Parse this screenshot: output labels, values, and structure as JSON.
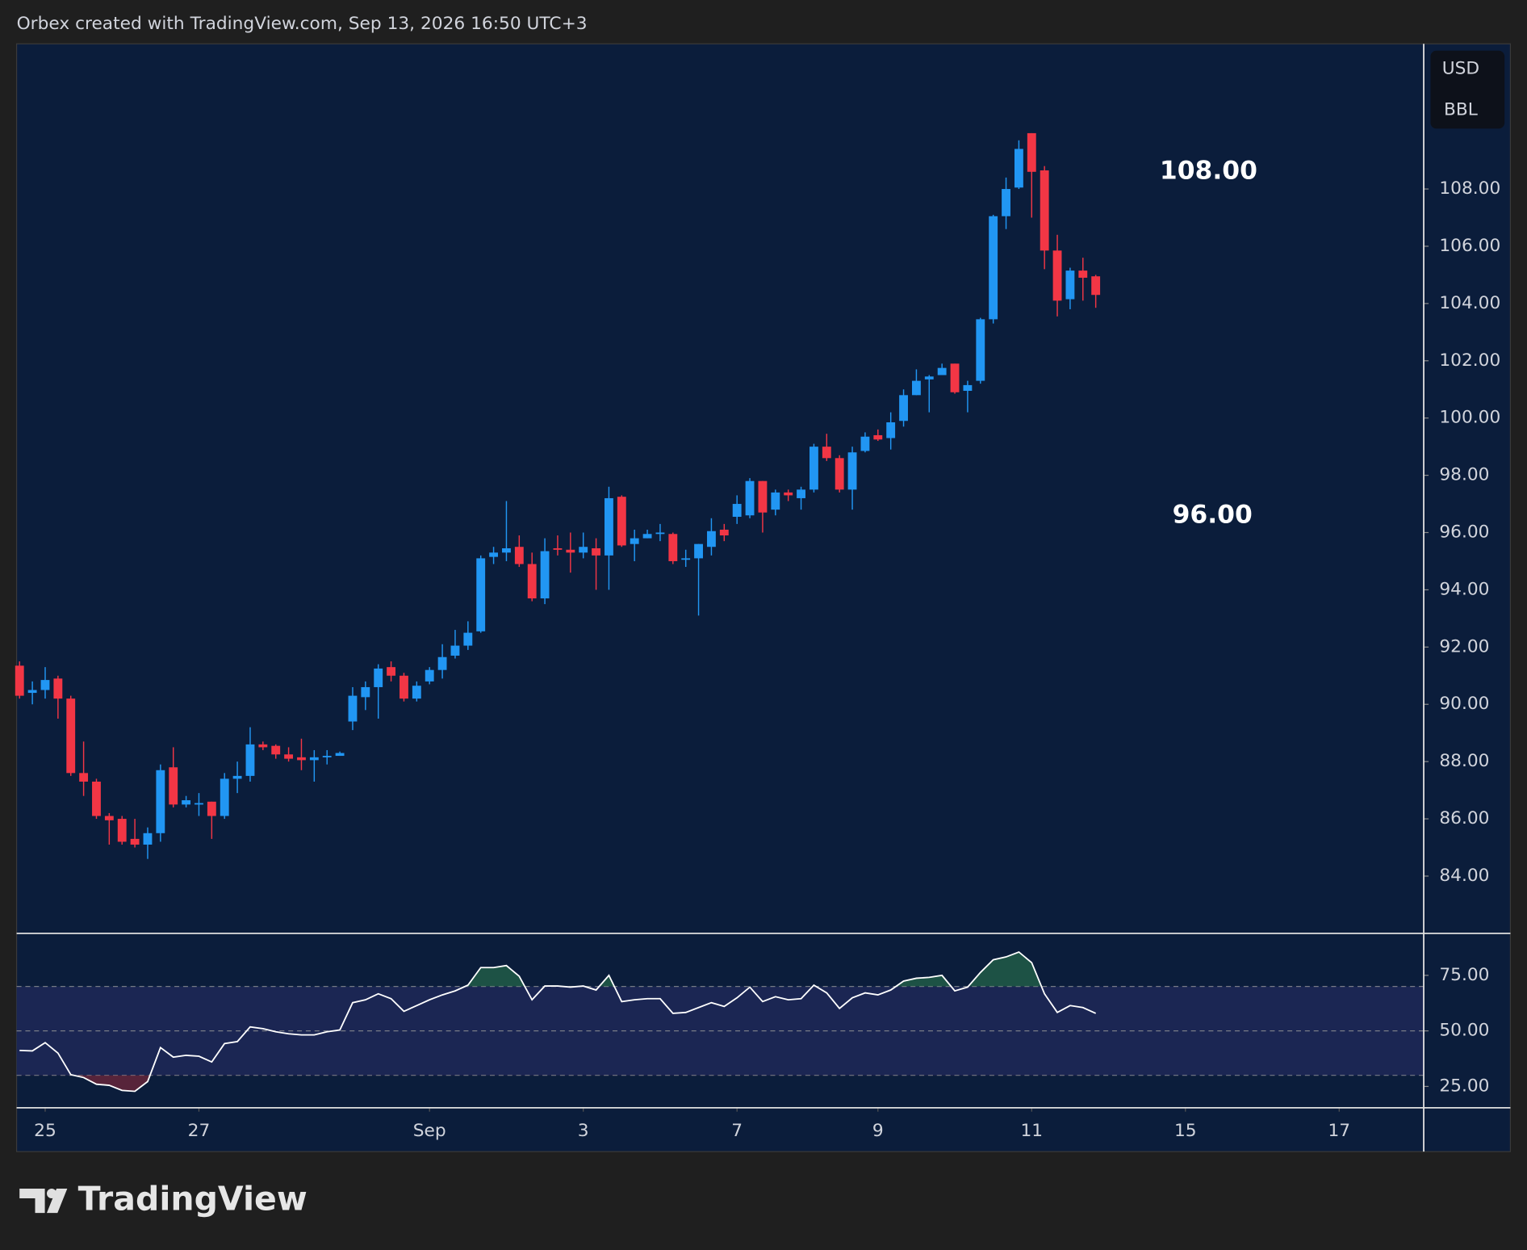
{
  "header": "Orbex created with TradingView.com, Sep 13, 2026 16:50 UTC+3",
  "brand": "TradingView",
  "unit_labels": [
    "USD",
    "BBL"
  ],
  "chart_data": [
    {
      "type": "candlestick",
      "up_color": "#2196f3",
      "down_color": "#f23645",
      "open": [
        91.35,
        90.4,
        90.5,
        90.9,
        90.2,
        87.6,
        87.3,
        86.1,
        86.0,
        85.3,
        85.1,
        85.5,
        87.8,
        86.5,
        86.5,
        86.6,
        86.1,
        87.4,
        87.5,
        88.6,
        88.55,
        88.25,
        88.15,
        88.05,
        88.15,
        88.2,
        89.4,
        90.25,
        90.6,
        91.3,
        91.0,
        90.2,
        90.8,
        91.2,
        91.7,
        92.05,
        92.55,
        95.15,
        95.3,
        95.5,
        94.9,
        93.7,
        95.45,
        95.4,
        95.3,
        95.45,
        95.2,
        97.25,
        95.6,
        95.8,
        95.95,
        95.95,
        95.05,
        95.1,
        95.5,
        96.1,
        96.55,
        96.6,
        97.8,
        96.8,
        97.4,
        97.2,
        97.5,
        99.0,
        98.6,
        97.5,
        98.85,
        99.4,
        99.3,
        99.9,
        100.8,
        101.35,
        101.5,
        101.9,
        100.95,
        101.3,
        103.45,
        107.05,
        108.05,
        109.95,
        108.65,
        105.85,
        104.15,
        105.15,
        104.95
      ],
      "high": [
        91.5,
        90.8,
        91.3,
        91.0,
        90.3,
        88.7,
        87.4,
        86.2,
        86.1,
        86.0,
        85.7,
        87.9,
        88.5,
        86.8,
        86.9,
        86.6,
        87.6,
        88.0,
        89.2,
        88.7,
        88.6,
        88.5,
        88.8,
        88.4,
        88.4,
        88.35,
        90.6,
        90.8,
        91.4,
        91.5,
        91.1,
        90.8,
        91.3,
        92.1,
        92.6,
        92.9,
        95.2,
        95.5,
        97.1,
        95.9,
        95.3,
        95.8,
        95.9,
        96.0,
        96.0,
        95.8,
        97.6,
        97.3,
        96.1,
        96.1,
        96.3,
        96.0,
        95.4,
        95.6,
        96.5,
        96.3,
        97.3,
        97.9,
        97.8,
        97.5,
        97.5,
        97.6,
        99.1,
        99.45,
        98.7,
        99.0,
        99.5,
        99.6,
        100.2,
        101.0,
        101.7,
        101.5,
        101.9,
        101.9,
        101.3,
        103.5,
        107.1,
        108.4,
        109.7,
        109.95,
        108.8,
        106.4,
        105.25,
        105.6,
        105.0
      ],
      "low": [
        90.2,
        90.0,
        90.2,
        89.5,
        87.5,
        86.8,
        86.0,
        85.1,
        85.1,
        85.0,
        84.6,
        85.2,
        86.4,
        86.4,
        86.1,
        85.3,
        86.0,
        86.9,
        87.3,
        88.4,
        88.1,
        88.0,
        87.7,
        87.3,
        87.9,
        88.2,
        89.1,
        89.8,
        89.5,
        90.8,
        90.1,
        90.1,
        90.7,
        90.9,
        91.6,
        91.9,
        92.5,
        94.9,
        95.0,
        94.8,
        93.6,
        93.5,
        95.2,
        94.6,
        95.1,
        94.0,
        94.0,
        95.5,
        95.0,
        95.8,
        95.7,
        94.9,
        94.8,
        93.1,
        95.2,
        95.7,
        96.3,
        96.5,
        96.0,
        96.6,
        97.1,
        96.8,
        97.4,
        98.5,
        97.4,
        96.8,
        98.8,
        99.2,
        98.9,
        99.7,
        100.8,
        100.2,
        101.5,
        100.85,
        100.2,
        101.2,
        103.3,
        106.6,
        108.0,
        107.0,
        105.2,
        103.55,
        103.8,
        104.1,
        103.85
      ],
      "close": [
        90.3,
        90.5,
        90.85,
        90.2,
        87.6,
        87.3,
        86.1,
        85.95,
        85.2,
        85.1,
        85.5,
        87.7,
        86.5,
        86.65,
        86.55,
        86.1,
        87.4,
        87.5,
        88.6,
        88.5,
        88.25,
        88.1,
        88.05,
        88.15,
        88.2,
        88.3,
        90.3,
        90.6,
        91.25,
        91.0,
        90.2,
        90.65,
        91.2,
        91.65,
        92.05,
        92.5,
        95.1,
        95.3,
        95.45,
        94.9,
        93.7,
        95.35,
        95.4,
        95.3,
        95.5,
        95.2,
        97.2,
        95.55,
        95.8,
        95.95,
        96.0,
        95.0,
        95.1,
        95.6,
        96.05,
        95.9,
        97.0,
        97.8,
        96.7,
        97.4,
        97.3,
        97.5,
        99.0,
        98.6,
        97.5,
        98.8,
        99.35,
        99.25,
        99.85,
        100.8,
        101.3,
        101.45,
        101.75,
        100.9,
        101.15,
        103.45,
        107.05,
        108.0,
        109.4,
        108.6,
        105.85,
        104.1,
        105.15,
        104.9,
        104.3
      ],
      "xlim": [
        -0.23,
        109.6
      ],
      "xticks": [
        {
          "value": 2,
          "label": "25"
        },
        {
          "value": 14,
          "label": "27"
        },
        {
          "value": 32,
          "label": "Sep"
        },
        {
          "value": 44,
          "label": "3"
        },
        {
          "value": 56,
          "label": "7"
        },
        {
          "value": 67,
          "label": "9"
        },
        {
          "value": 79,
          "label": "11"
        },
        {
          "value": 91,
          "label": "15"
        },
        {
          "value": 103,
          "label": "17"
        }
      ],
      "ylim": [
        82.0,
        113.07
      ],
      "yticks": [
        {
          "value": 84,
          "label": "84.00"
        },
        {
          "value": 86,
          "label": "86.00"
        },
        {
          "value": 88,
          "label": "88.00"
        },
        {
          "value": 90,
          "label": "90.00"
        },
        {
          "value": 92,
          "label": "92.00"
        },
        {
          "value": 94,
          "label": "94.00"
        },
        {
          "value": 96,
          "label": "96.00"
        },
        {
          "value": 98,
          "label": "98.00"
        },
        {
          "value": 100,
          "label": "100.00"
        },
        {
          "value": 102,
          "label": "102.00"
        },
        {
          "value": 104,
          "label": "104.00"
        },
        {
          "value": 106,
          "label": "106.00"
        },
        {
          "value": 108,
          "label": "108.00"
        }
      ],
      "annotations": [
        "108.00",
        "96.00"
      ]
    },
    {
      "type": "line",
      "color": "#ffffff",
      "values": [
        41.2,
        41,
        44.7,
        40,
        30.3,
        29,
        26,
        25.5,
        23.2,
        22.8,
        27.2,
        42.5,
        38.2,
        39,
        38.6,
        36,
        44.3,
        45.2,
        51.8,
        51,
        49.6,
        48.7,
        48.2,
        48.2,
        49.6,
        50.4,
        62.7,
        64,
        66.7,
        64.5,
        58.8,
        61.4,
        64,
        66.2,
        68,
        70.6,
        78.5,
        78.5,
        79.4,
        74.6,
        64,
        70.2,
        70.2,
        69.7,
        70.2,
        68.4,
        75,
        63.2,
        64,
        64.5,
        64.5,
        57.9,
        58.3,
        60.5,
        62.7,
        61,
        64.9,
        69.7,
        63.2,
        65.4,
        64,
        64.5,
        70.6,
        67.1,
        60.1,
        64.9,
        67.1,
        66.2,
        68.4,
        72.4,
        73.7,
        74.1,
        75,
        68,
        69.7,
        76.3,
        82,
        83.3,
        85.5,
        80.7,
        66.7,
        58.3,
        61.4,
        60.5,
        57.9
      ],
      "ylim": [
        15.4,
        93.9
      ],
      "yticks": [
        {
          "value": 25,
          "label": "25.00"
        },
        {
          "value": 50,
          "label": "50.00"
        },
        {
          "value": 75,
          "label": "75.00"
        }
      ],
      "levels": [
        30,
        50,
        70
      ]
    }
  ]
}
